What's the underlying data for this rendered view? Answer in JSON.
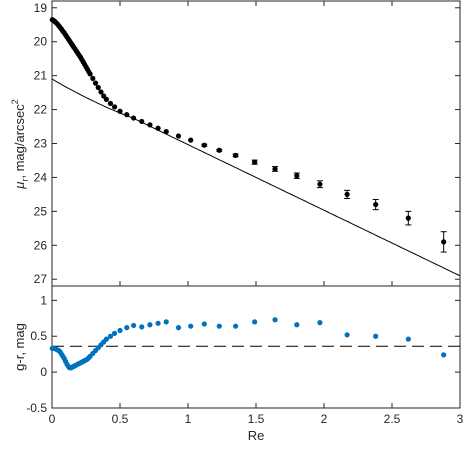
{
  "chart_data": [
    {
      "type": "scatter",
      "panel": "top",
      "xlabel": "",
      "ylabel_symbol": "μ",
      "ylabel_subscript": "r",
      "ylabel_rest": ", mag/arcsec",
      "ylabel_power": "2",
      "xlim": [
        0,
        3
      ],
      "ylim": [
        27.2,
        18.8
      ],
      "y_reversed": true,
      "yticks": [
        19,
        20,
        21,
        22,
        23,
        24,
        25,
        26,
        27
      ],
      "grid": false,
      "fit_line": {
        "x0": 0,
        "y0": 21.1,
        "x1": 3,
        "y1": 26.9,
        "curve_out_to": 0.6
      },
      "series": [
        {
          "x": [
            0.002,
            0.01,
            0.02,
            0.03,
            0.04,
            0.05,
            0.06,
            0.07,
            0.08,
            0.09,
            0.1,
            0.11,
            0.12,
            0.13,
            0.14,
            0.15,
            0.16,
            0.17,
            0.18,
            0.19,
            0.2,
            0.21,
            0.22,
            0.23,
            0.24,
            0.25,
            0.26,
            0.27,
            0.28,
            0.3,
            0.32,
            0.34,
            0.36,
            0.38,
            0.4,
            0.43,
            0.46,
            0.5,
            0.55,
            0.6,
            0.66,
            0.72,
            0.78,
            0.84,
            0.93,
            1.02,
            1.12,
            1.23,
            1.35,
            1.49,
            1.64,
            1.8,
            1.97,
            2.17,
            2.38,
            2.62,
            2.88
          ],
          "y": [
            19.35,
            19.37,
            19.4,
            19.44,
            19.48,
            19.53,
            19.58,
            19.63,
            19.69,
            19.74,
            19.8,
            19.86,
            19.92,
            19.98,
            20.04,
            20.1,
            20.16,
            20.22,
            20.28,
            20.34,
            20.4,
            20.46,
            20.53,
            20.6,
            20.67,
            20.74,
            20.81,
            20.88,
            20.95,
            21.08,
            21.22,
            21.35,
            21.48,
            21.6,
            21.7,
            21.82,
            21.92,
            22.05,
            22.15,
            22.25,
            22.35,
            22.45,
            22.55,
            22.65,
            22.78,
            22.9,
            23.05,
            23.2,
            23.35,
            23.55,
            23.75,
            23.95,
            24.2,
            24.5,
            24.8,
            25.2,
            25.9
          ],
          "err": [
            0,
            0,
            0,
            0,
            0,
            0,
            0,
            0,
            0,
            0,
            0,
            0,
            0,
            0,
            0,
            0,
            0,
            0,
            0,
            0,
            0,
            0,
            0,
            0,
            0,
            0,
            0,
            0,
            0,
            0,
            0,
            0,
            0,
            0,
            0,
            0,
            0,
            0,
            0,
            0,
            0,
            0,
            0,
            0,
            0,
            0,
            0.03,
            0.03,
            0.04,
            0.06,
            0.07,
            0.08,
            0.1,
            0.12,
            0.15,
            0.2,
            0.3
          ]
        }
      ]
    },
    {
      "type": "scatter",
      "panel": "bottom",
      "xlabel": "Re",
      "ylabel": "g-r, mag",
      "xlim": [
        0,
        3
      ],
      "ylim": [
        -0.5,
        1.2
      ],
      "xticks": [
        0,
        0.5,
        1,
        1.5,
        2,
        2.5,
        3
      ],
      "xtick_labels": [
        "0",
        "0.5",
        "1",
        "1.5",
        "2",
        "2.5",
        "3"
      ],
      "yticks": [
        -0.5,
        0,
        0.5,
        1
      ],
      "ytick_labels": [
        "-0.5",
        "0",
        "0.5",
        "1"
      ],
      "grid": false,
      "hline": 0.36,
      "series": [
        {
          "x": [
            0.002,
            0.01,
            0.02,
            0.03,
            0.04,
            0.05,
            0.06,
            0.07,
            0.08,
            0.09,
            0.1,
            0.11,
            0.12,
            0.13,
            0.14,
            0.15,
            0.16,
            0.17,
            0.18,
            0.19,
            0.2,
            0.21,
            0.22,
            0.23,
            0.24,
            0.25,
            0.26,
            0.27,
            0.28,
            0.3,
            0.32,
            0.34,
            0.36,
            0.38,
            0.4,
            0.43,
            0.46,
            0.5,
            0.55,
            0.6,
            0.66,
            0.72,
            0.78,
            0.84,
            0.93,
            1.02,
            1.12,
            1.23,
            1.35,
            1.49,
            1.64,
            1.8,
            1.97,
            2.17,
            2.38,
            2.62,
            2.88
          ],
          "y": [
            0.33,
            0.33,
            0.33,
            0.32,
            0.31,
            0.3,
            0.28,
            0.25,
            0.22,
            0.19,
            0.15,
            0.11,
            0.08,
            0.06,
            0.06,
            0.07,
            0.08,
            0.09,
            0.1,
            0.11,
            0.12,
            0.13,
            0.14,
            0.15,
            0.16,
            0.17,
            0.18,
            0.2,
            0.22,
            0.26,
            0.3,
            0.34,
            0.38,
            0.42,
            0.46,
            0.5,
            0.54,
            0.58,
            0.62,
            0.65,
            0.63,
            0.66,
            0.68,
            0.7,
            0.62,
            0.64,
            0.67,
            0.64,
            0.64,
            0.7,
            0.73,
            0.66,
            0.69,
            0.52,
            0.5,
            0.46,
            0.24
          ]
        }
      ]
    }
  ]
}
